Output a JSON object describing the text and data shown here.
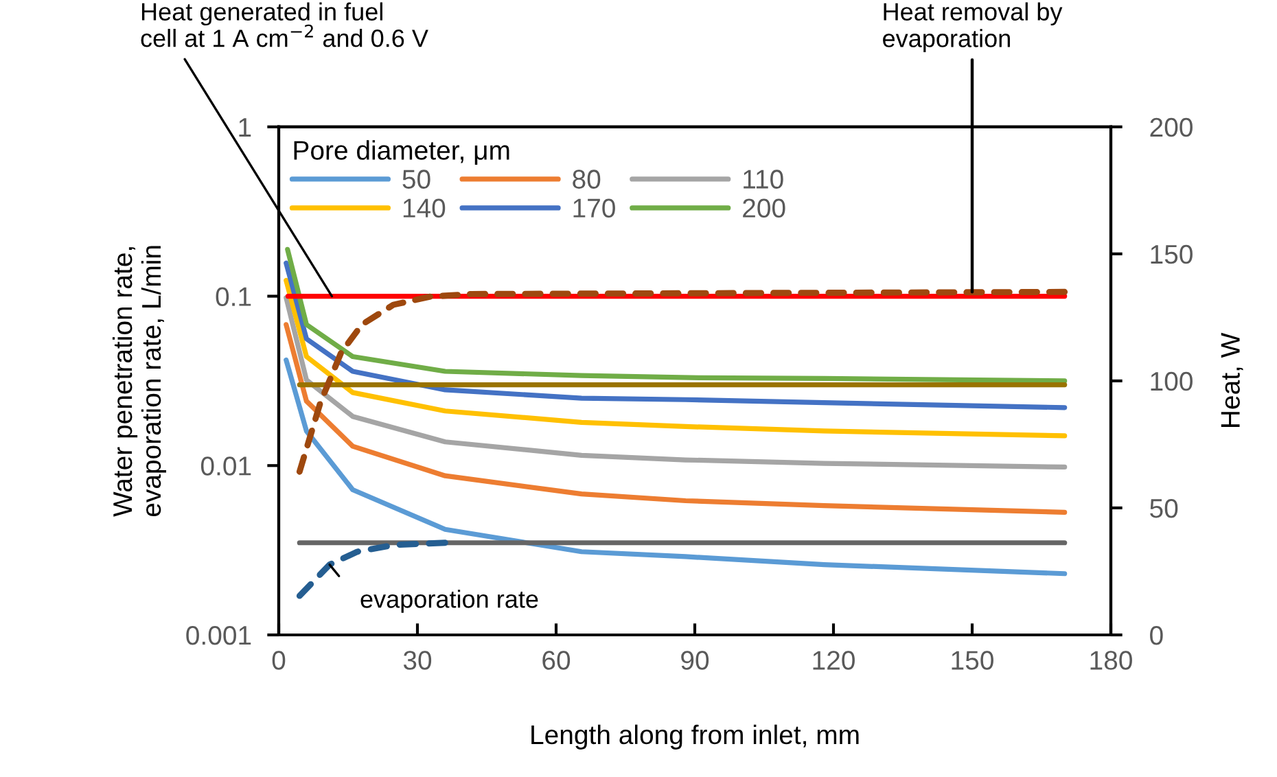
{
  "chart_data": {
    "type": "line",
    "xlabel": "Length along from inlet, mm",
    "ylabel": "Water penetration rate,\nevaporation rate, L/min",
    "y2label": "Heat, W",
    "legend_title": "Pore diameter, μm",
    "legend": "top left",
    "grid": false,
    "log": "y",
    "marker": "none",
    "xlim": [
      0,
      180
    ],
    "xticks": [
      0,
      30,
      60,
      90,
      120,
      150,
      180
    ],
    "ylim": [
      0.001,
      1
    ],
    "yticks": [
      0.001,
      0.01,
      0.1,
      1
    ],
    "y2lim": [
      0,
      200
    ],
    "y2ticks": [
      0,
      50,
      100,
      150,
      200
    ],
    "series": [
      {
        "name": "50",
        "color": "#5b9bd5",
        "x": [
          1.6,
          6,
          16,
          36,
          65.5,
          88,
          118,
          170
        ],
        "values": [
          0.042,
          0.016,
          0.0072,
          0.0042,
          0.0031,
          0.0029,
          0.0026,
          0.0023
        ]
      },
      {
        "name": "80",
        "color": "#ed7d31",
        "x": [
          1.6,
          6,
          16,
          36,
          65.5,
          88,
          118,
          170
        ],
        "values": [
          0.068,
          0.024,
          0.013,
          0.0087,
          0.0068,
          0.0062,
          0.0058,
          0.0053
        ]
      },
      {
        "name": "110",
        "color": "#a5a5a5",
        "x": [
          1.6,
          6,
          16,
          36,
          65.5,
          88,
          118,
          170
        ],
        "values": [
          0.098,
          0.032,
          0.0195,
          0.0138,
          0.0115,
          0.0108,
          0.0103,
          0.0098
        ]
      },
      {
        "name": "140",
        "color": "#ffc000",
        "x": [
          1.6,
          6,
          16,
          36,
          65.5,
          88,
          118,
          170
        ],
        "values": [
          0.124,
          0.044,
          0.027,
          0.021,
          0.018,
          0.017,
          0.016,
          0.015
        ]
      },
      {
        "name": "170",
        "color": "#4472c4",
        "x": [
          1.6,
          6,
          16,
          36,
          65.5,
          88,
          118,
          170
        ],
        "values": [
          0.157,
          0.056,
          0.036,
          0.028,
          0.025,
          0.0245,
          0.0235,
          0.022
        ]
      },
      {
        "name": "200",
        "color": "#70ad47",
        "x": [
          1.9,
          6,
          16,
          36,
          65.5,
          91,
          118,
          170
        ],
        "values": [
          0.189,
          0.068,
          0.044,
          0.036,
          0.034,
          0.033,
          0.0327,
          0.0316
        ]
      },
      {
        "color": "#ff0000",
        "x": [
          2,
          170
        ],
        "values": [
          0.1,
          0.1
        ]
      },
      {
        "color": "#997300",
        "x": [
          4.5,
          170
        ],
        "values": [
          0.03,
          0.03
        ]
      },
      {
        "color": "#666666",
        "x": [
          4.5,
          170
        ],
        "values": [
          0.0035,
          0.0035
        ]
      },
      {
        "color": "#9e480e",
        "line_style": "dashed",
        "x": [
          4.5,
          9,
          13.5,
          18,
          24.8,
          32.8,
          41.7,
          170
        ],
        "values": [
          0.0092,
          0.0235,
          0.0465,
          0.068,
          0.089,
          0.0995,
          0.103,
          0.106
        ]
      },
      {
        "color": "#255e91",
        "line_style": "dashed",
        "x": [
          4.5,
          11,
          17,
          25,
          36
        ],
        "values": [
          0.0017,
          0.0026,
          0.0031,
          0.0034,
          0.0035
        ]
      }
    ],
    "annotations": [
      {
        "text": "Heat generated in fuel\ncell at 1 A cm$^{−2}$ and 0.6 V",
        "x": 11.5,
        "y": 0.1
      },
      {
        "text": "Heat removal by\nevaporation",
        "x": 150,
        "y": 0.106
      },
      {
        "text": "evaporation rate",
        "x": 11,
        "y": 0.0026
      }
    ]
  }
}
